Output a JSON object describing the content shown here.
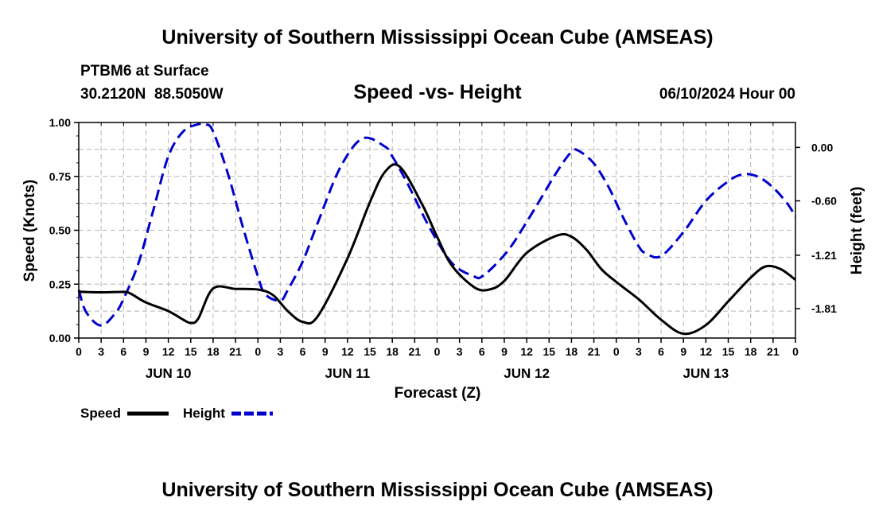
{
  "chart_data": {
    "type": "line",
    "title": "University of Southern Mississippi Ocean Cube (AMSEAS)",
    "footer_title": "University of Southern Mississippi Ocean Cube (AMSEAS)",
    "station": "PTBM6 at Surface",
    "coordinates": "30.2120N  88.5050W",
    "subtitle": "Speed -vs- Height",
    "date_label": "06/10/2024 Hour 00",
    "xlabel": "Forecast (Z)",
    "ylabel_left": "Speed (Knots)",
    "ylabel_right": "Height (feet)",
    "x_unit": "hours since 06/10/2024 00Z",
    "xlim": [
      0,
      96
    ],
    "ylim_left": [
      0,
      1.0
    ],
    "ylim_right": [
      -2.14,
      0.28
    ],
    "left_ticks": [
      {
        "value": 0.0,
        "label": "0.00"
      },
      {
        "value": 0.25,
        "label": "0.25"
      },
      {
        "value": 0.5,
        "label": "0.50"
      },
      {
        "value": 0.75,
        "label": "0.75"
      },
      {
        "value": 1.0,
        "label": "1.00"
      }
    ],
    "right_ticks": [
      {
        "value": 0.0,
        "label": "0.00"
      },
      {
        "value": -0.6,
        "label": "-0.60"
      },
      {
        "value": -1.21,
        "label": "-1.21"
      },
      {
        "value": -1.81,
        "label": "-1.81"
      }
    ],
    "x_ticks": [
      {
        "hour": 0,
        "label": "0"
      },
      {
        "hour": 3,
        "label": "3"
      },
      {
        "hour": 6,
        "label": "6"
      },
      {
        "hour": 9,
        "label": "9"
      },
      {
        "hour": 12,
        "label": "12"
      },
      {
        "hour": 15,
        "label": "15"
      },
      {
        "hour": 18,
        "label": "18"
      },
      {
        "hour": 21,
        "label": "21"
      },
      {
        "hour": 24,
        "label": "0"
      },
      {
        "hour": 27,
        "label": "3"
      },
      {
        "hour": 30,
        "label": "6"
      },
      {
        "hour": 33,
        "label": "9"
      },
      {
        "hour": 36,
        "label": "12"
      },
      {
        "hour": 39,
        "label": "15"
      },
      {
        "hour": 42,
        "label": "18"
      },
      {
        "hour": 45,
        "label": "21"
      },
      {
        "hour": 48,
        "label": "0"
      },
      {
        "hour": 51,
        "label": "3"
      },
      {
        "hour": 54,
        "label": "6"
      },
      {
        "hour": 57,
        "label": "9"
      },
      {
        "hour": 60,
        "label": "12"
      },
      {
        "hour": 63,
        "label": "15"
      },
      {
        "hour": 66,
        "label": "18"
      },
      {
        "hour": 69,
        "label": "21"
      },
      {
        "hour": 72,
        "label": "0"
      },
      {
        "hour": 75,
        "label": "3"
      },
      {
        "hour": 78,
        "label": "6"
      },
      {
        "hour": 81,
        "label": "9"
      },
      {
        "hour": 84,
        "label": "12"
      },
      {
        "hour": 87,
        "label": "15"
      },
      {
        "hour": 90,
        "label": "18"
      },
      {
        "hour": 93,
        "label": "21"
      },
      {
        "hour": 96,
        "label": "0"
      }
    ],
    "day_labels": [
      {
        "hour": 12,
        "label": "JUN 10"
      },
      {
        "hour": 36,
        "label": "JUN 11"
      },
      {
        "hour": 60,
        "label": "JUN 12"
      },
      {
        "hour": 84,
        "label": "JUN 13"
      }
    ],
    "legend": [
      {
        "name": "Speed",
        "style": "solid",
        "color": "#000000"
      },
      {
        "name": "Height",
        "style": "dashed",
        "color": "#0000cc"
      }
    ],
    "series": [
      {
        "name": "Speed",
        "axis": "left",
        "color": "#000000",
        "x": [
          0,
          3,
          6,
          7,
          9,
          12,
          14,
          15,
          16,
          18,
          21,
          24,
          26,
          28,
          30,
          32,
          36,
          39,
          41,
          43,
          46,
          48,
          50,
          53,
          55,
          57,
          60,
          64,
          66,
          68,
          70,
          72,
          75,
          78,
          81,
          84,
          87,
          90,
          92,
          94,
          96
        ],
        "values": [
          0.215,
          0.212,
          0.214,
          0.205,
          0.165,
          0.125,
          0.085,
          0.07,
          0.09,
          0.23,
          0.228,
          0.225,
          0.2,
          0.125,
          0.075,
          0.1,
          0.37,
          0.63,
          0.77,
          0.795,
          0.62,
          0.47,
          0.335,
          0.235,
          0.225,
          0.265,
          0.395,
          0.475,
          0.47,
          0.41,
          0.32,
          0.26,
          0.18,
          0.085,
          0.02,
          0.06,
          0.17,
          0.28,
          0.332,
          0.32,
          0.27
        ]
      },
      {
        "name": "Height",
        "axis": "right",
        "color": "#0000cc",
        "x": [
          0,
          1,
          3,
          5,
          6,
          8,
          10,
          12,
          14,
          16,
          17,
          18,
          20,
          22,
          24,
          25,
          27,
          28,
          30,
          32,
          35,
          38,
          41,
          42,
          44,
          47,
          50,
          53,
          54,
          56,
          58,
          61,
          64,
          66,
          67,
          69,
          71,
          73,
          75,
          76,
          78,
          81,
          84,
          87,
          89,
          91,
          93,
          95,
          96
        ],
        "values": [
          -1.6,
          -1.85,
          -2.0,
          -1.85,
          -1.7,
          -1.3,
          -0.7,
          -0.1,
          0.18,
          0.26,
          0.26,
          0.18,
          -0.3,
          -0.9,
          -1.45,
          -1.65,
          -1.72,
          -1.6,
          -1.28,
          -0.85,
          -0.23,
          0.1,
          0.01,
          -0.1,
          -0.4,
          -0.9,
          -1.3,
          -1.45,
          -1.45,
          -1.3,
          -1.1,
          -0.7,
          -0.28,
          -0.05,
          -0.04,
          -0.18,
          -0.45,
          -0.8,
          -1.11,
          -1.19,
          -1.22,
          -0.95,
          -0.6,
          -0.38,
          -0.3,
          -0.33,
          -0.45,
          -0.64,
          -0.78
        ]
      }
    ]
  }
}
